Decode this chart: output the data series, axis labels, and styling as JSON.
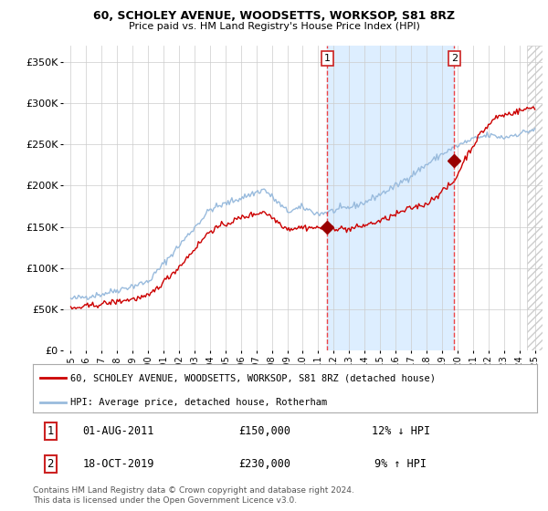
{
  "title": "60, SCHOLEY AVENUE, WOODSETTS, WORKSOP, S81 8RZ",
  "subtitle": "Price paid vs. HM Land Registry's House Price Index (HPI)",
  "legend_line1": "60, SCHOLEY AVENUE, WOODSETTS, WORKSOP, S81 8RZ (detached house)",
  "legend_line2": "HPI: Average price, detached house, Rotherham",
  "footnote": "Contains HM Land Registry data © Crown copyright and database right 2024.\nThis data is licensed under the Open Government Licence v3.0.",
  "annotation1": {
    "num": "1",
    "date": "01-AUG-2011",
    "price": "£150,000",
    "pct": "12% ↓ HPI"
  },
  "annotation2": {
    "num": "2",
    "date": "18-OCT-2019",
    "price": "£230,000",
    "pct": "9% ↑ HPI"
  },
  "vline1_x": 2011.58,
  "vline2_x": 2019.79,
  "point1_y": 150000,
  "point2_y": 230000,
  "ylabel_ticks": [
    "£0",
    "£50K",
    "£100K",
    "£150K",
    "£200K",
    "£250K",
    "£300K",
    "£350K"
  ],
  "ytick_values": [
    0,
    50000,
    100000,
    150000,
    200000,
    250000,
    300000,
    350000
  ],
  "ylim": [
    0,
    370000
  ],
  "xlim_min": 1994.5,
  "xlim_max": 2025.5,
  "plot_bg_color": "#ffffff",
  "red_color": "#cc0000",
  "blue_color": "#99bbdd",
  "shade_color": "#ddeeff",
  "grid_color": "#cccccc",
  "vline_color": "#ee3333",
  "hatch_color": "#cccccc",
  "annotation_box_color": "#cc2222"
}
